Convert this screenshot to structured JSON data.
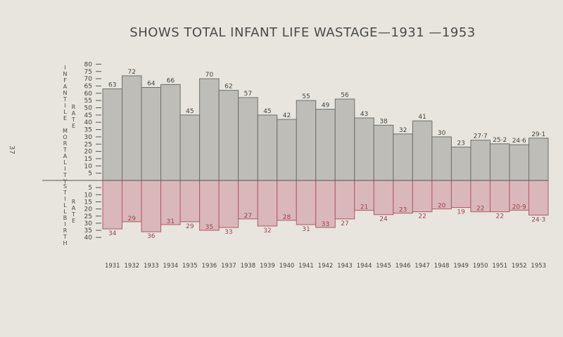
{
  "page_number": "37",
  "chart_data": {
    "type": "bar",
    "title": "SHOWS TOTAL INFANT LIFE WASTAGE—1931 —1953",
    "categories": [
      "1931",
      "1932",
      "1933",
      "1934",
      "1935",
      "1936",
      "1937",
      "1938",
      "1939",
      "1940",
      "1941",
      "1942",
      "1943",
      "1944",
      "1945",
      "1946",
      "1947",
      "1948",
      "1949",
      "1950",
      "1951",
      "1952",
      "1953"
    ],
    "series": [
      {
        "name": "INFANTILE MORTALITY RATE",
        "direction": "up",
        "color": "#bebdb8",
        "values": [
          63,
          72,
          64,
          66,
          45,
          70,
          62,
          57,
          45,
          42,
          55,
          49,
          56,
          43,
          38,
          32,
          41,
          30,
          23,
          27.7,
          25.2,
          24.6,
          29.1
        ]
      },
      {
        "name": "STILLBIRTH RATE",
        "direction": "down",
        "color": "#d9b7ba",
        "edge": "#b05a66",
        "values": [
          34,
          29,
          36,
          31,
          29,
          35,
          33,
          27,
          32,
          28,
          31,
          33,
          27,
          21,
          24,
          23,
          22,
          20,
          19,
          22,
          22,
          20.9,
          24.3
        ]
      }
    ],
    "upper_axis": {
      "label_1": "INFANTILE MORTALITY",
      "label_2": "RATE",
      "range": [
        0,
        80
      ],
      "ticks": [
        5,
        10,
        15,
        20,
        25,
        30,
        35,
        40,
        45,
        50,
        55,
        60,
        65,
        70,
        75,
        80
      ]
    },
    "lower_axis": {
      "label_1": "STILLBIRTH",
      "label_2": "RATE",
      "range": [
        0,
        40
      ],
      "ticks": [
        5,
        10,
        15,
        20,
        25,
        30,
        35,
        40
      ]
    },
    "grid": false
  }
}
